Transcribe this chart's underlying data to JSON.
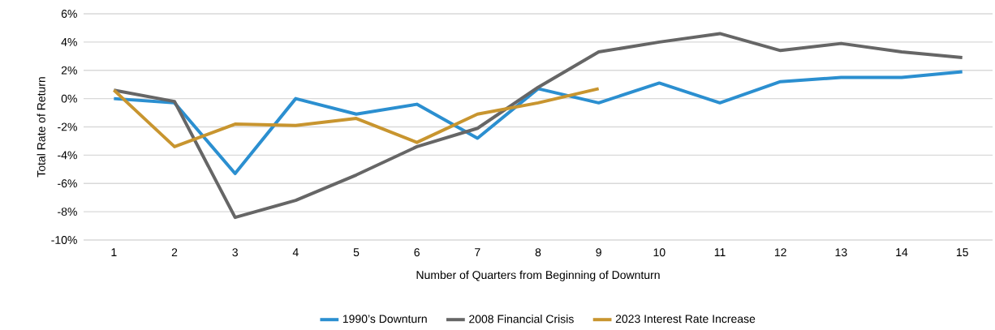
{
  "chart_data": {
    "type": "line",
    "xlabel": "Number of Quarters from Beginning of Downturn",
    "ylabel": "Total Rate of Return",
    "categories": [
      "1",
      "2",
      "3",
      "4",
      "5",
      "6",
      "7",
      "8",
      "9",
      "10",
      "11",
      "12",
      "13",
      "14",
      "15"
    ],
    "series": [
      {
        "name": "1990’s Downturn",
        "color": "#2b8fd0",
        "values": [
          0,
          -0.3,
          -5.3,
          0,
          -1.1,
          -0.4,
          -2.8,
          0.7,
          -0.3,
          1.1,
          -0.3,
          1.2,
          1.5,
          1.5,
          1.9
        ]
      },
      {
        "name": "2008 Financial Crisis",
        "color": "#666666",
        "values": [
          0.6,
          -0.2,
          -8.4,
          -7.2,
          -5.4,
          -3.4,
          -2.1,
          0.8,
          3.3,
          4.0,
          4.6,
          3.4,
          3.9,
          3.3,
          2.9
        ]
      },
      {
        "name": "2023 Interest Rate Increase",
        "color": "#c8952f",
        "values": [
          0.6,
          -3.4,
          -1.8,
          -1.9,
          -1.4,
          -3.1,
          -1.1,
          -0.3,
          0.7,
          null,
          null,
          null,
          null,
          null,
          null
        ]
      }
    ],
    "ylim": [
      -10,
      6
    ],
    "yticks": [
      {
        "value": -10,
        "label": "-10%"
      },
      {
        "value": -8,
        "label": "-8%"
      },
      {
        "value": -6,
        "label": "-6%"
      },
      {
        "value": -4,
        "label": "-4%"
      },
      {
        "value": -2,
        "label": "-2%"
      },
      {
        "value": 0,
        "label": "0%"
      },
      {
        "value": 2,
        "label": "2%"
      },
      {
        "value": 4,
        "label": "4%"
      },
      {
        "value": 6,
        "label": "6%"
      }
    ],
    "grid": "y",
    "legend": "bottom",
    "marker": "none",
    "line_style": "solid"
  }
}
